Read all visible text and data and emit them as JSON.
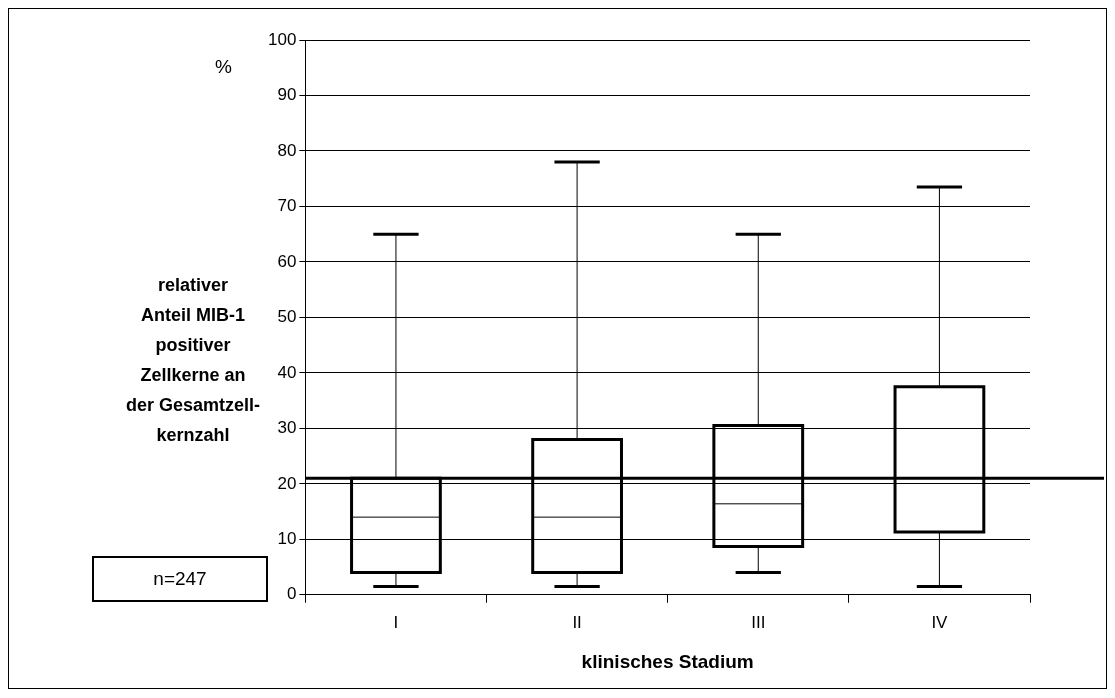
{
  "chart_data": {
    "type": "box",
    "xlabel": "klinisches Stadium",
    "ylabel": "relativer\nAnteil MIB-1\npositiver\nZellkerne an\nder Gesamtzell-\nkernzahl",
    "categories": [
      "I",
      "II",
      "III",
      "IV"
    ],
    "boxes": [
      {
        "low": 1.5,
        "q1": 4,
        "median": 14,
        "q3": 21,
        "high": 65
      },
      {
        "low": 1.5,
        "q1": 4,
        "median": 14,
        "q3": 28,
        "high": 78
      },
      {
        "low": 4,
        "q1": 8.7,
        "median": 16.4,
        "q3": 30.5,
        "high": 65
      },
      {
        "low": 1.5,
        "q1": 11.3,
        "median": 21,
        "q3": 37.5,
        "high": 73.5
      }
    ],
    "color": "#000000",
    "ylim": [
      0,
      100
    ],
    "yticks": [
      0,
      10,
      20,
      30,
      40,
      50,
      60,
      70,
      80,
      90,
      100
    ],
    "grid": "y",
    "legend": false,
    "ref_lines": [
      {
        "axis": "y",
        "value": 21,
        "color": "#000000"
      }
    ],
    "annotations": [
      "%",
      "n=247"
    ]
  }
}
